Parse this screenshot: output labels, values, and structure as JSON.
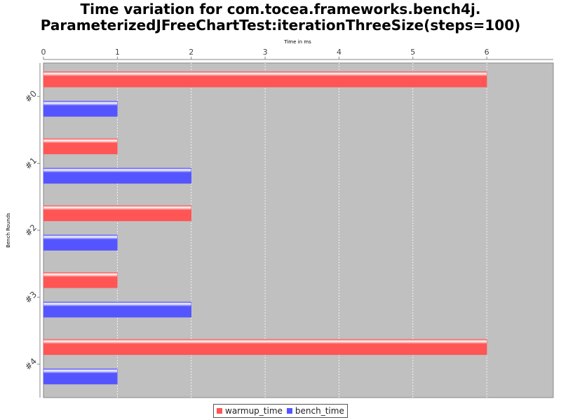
{
  "chart_data": {
    "type": "bar",
    "orientation": "horizontal",
    "title_lines": [
      "Time variation for com.tocea.frameworks.bench4j.",
      "ParameterizedJFreeChartTest:iterationThreeSize(steps=100)"
    ],
    "xlabel": "Time in ms",
    "ylabel": "Bench Rounds",
    "x_axis_position": "top",
    "xlim": [
      0,
      6.9
    ],
    "xticks": [
      0,
      1,
      2,
      3,
      4,
      5,
      6
    ],
    "categories": [
      "#0",
      "#1",
      "#2",
      "#3",
      "#4"
    ],
    "series": [
      {
        "name": "warmup_time",
        "color": "#ff5555",
        "values": [
          6,
          1,
          2,
          1,
          6
        ]
      },
      {
        "name": "bench_time",
        "color": "#5555ff",
        "values": [
          1,
          2,
          1,
          2,
          1
        ]
      }
    ],
    "plot_background": "#c0c0c0",
    "grid": true,
    "legend_position": "bottom"
  }
}
